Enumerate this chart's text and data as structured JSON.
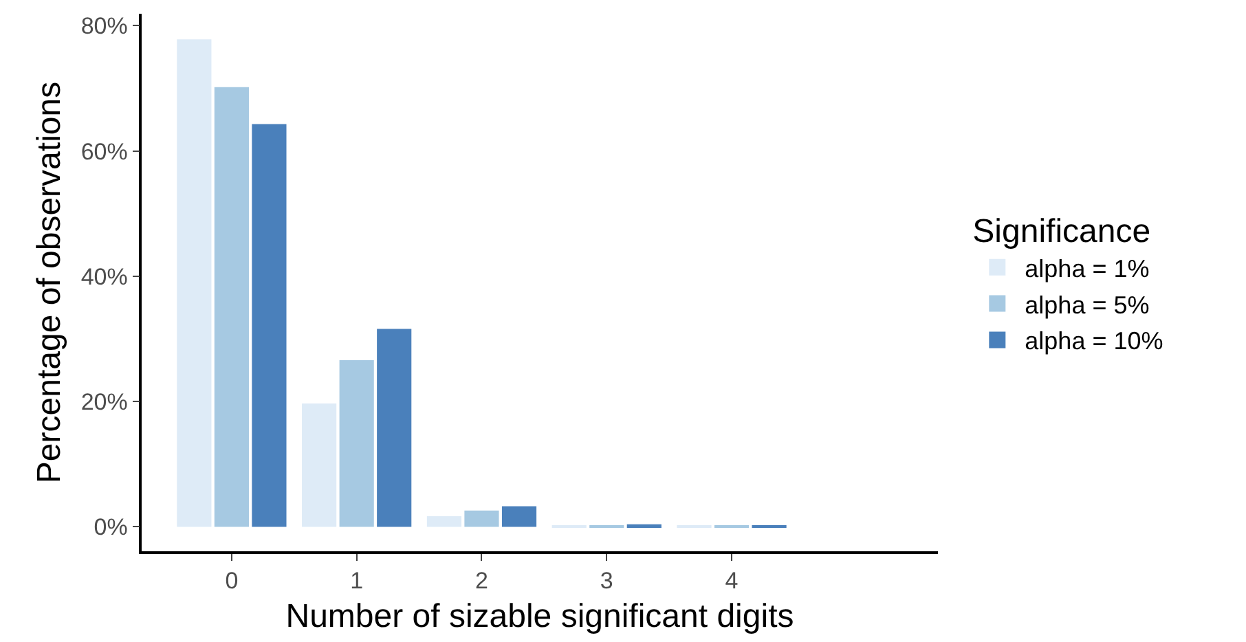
{
  "chart_data": {
    "type": "bar",
    "xlabel": "Number of sizable significant digits",
    "ylabel": "Percentage of observations",
    "legend_title": "Significance",
    "categories": [
      "0",
      "1",
      "2",
      "3",
      "4"
    ],
    "series": [
      {
        "name": "alpha = 1%",
        "color": "#deebf7",
        "values": [
          77.8,
          19.7,
          1.7,
          0.1,
          0.1
        ]
      },
      {
        "name": "alpha = 5%",
        "color": "#a6c9e2",
        "values": [
          70.2,
          26.6,
          2.6,
          0.2,
          0.1
        ]
      },
      {
        "name": "alpha = 10%",
        "color": "#4a80bb",
        "values": [
          64.3,
          31.6,
          3.3,
          0.4,
          0.1
        ]
      }
    ],
    "ylim": [
      -3.9,
      81.9
    ],
    "yticks": [
      {
        "value": 0,
        "label": "0%"
      },
      {
        "value": 20,
        "label": "20%"
      },
      {
        "value": 40,
        "label": "40%"
      },
      {
        "value": 60,
        "label": "60%"
      },
      {
        "value": 80,
        "label": "80%"
      }
    ],
    "legend": "right"
  }
}
